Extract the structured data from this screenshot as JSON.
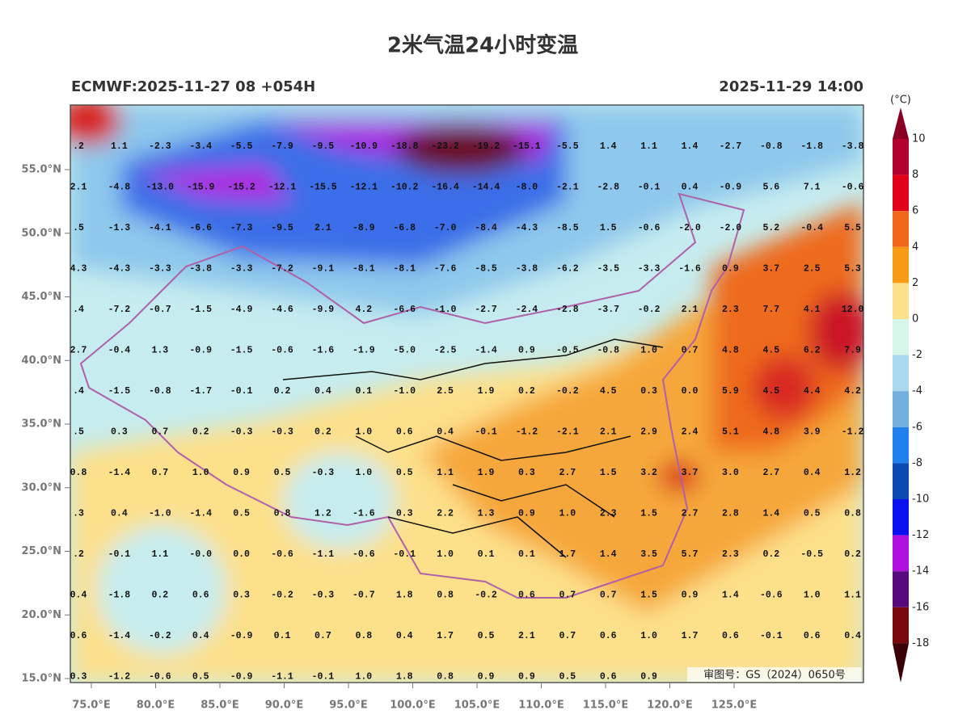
{
  "title": "2米气温24小时变温",
  "model_run": "ECMWF:2025-11-27 08 +054H",
  "valid_time": "2025-11-29 14:00",
  "unit": "(°C)",
  "colorbar": {
    "labels": [
      10,
      8,
      6,
      4,
      2,
      0,
      -2,
      -4,
      -6,
      -8,
      -10,
      -12,
      -14,
      -16,
      -18
    ],
    "colors": [
      "#8a0024",
      "#b3002e",
      "#e3001b",
      "#f0661a",
      "#f79a14",
      "#fde18a",
      "#d6f6ea",
      "#a8d8f0",
      "#74aedc",
      "#1f80ee",
      "#0a4ab2",
      "#0a10f0",
      "#b010e0",
      "#560a7c",
      "#780a0e",
      "#3a0006"
    ]
  },
  "lat_labels": [
    "55.0°N",
    "50.0°N",
    "45.0°N",
    "40.0°N",
    "35.0°N",
    "30.0°N",
    "25.0°N",
    "20.0°N",
    "15.0°N"
  ],
  "lon_labels": [
    "75.0°E",
    "80.0°E",
    "85.0°E",
    "90.0°E",
    "95.0°E",
    "100.0°E",
    "105.0°E",
    "110.0°E",
    "115.0°E",
    "120.0°E",
    "125.0°E"
  ],
  "grid": {
    "rows": [
      [
        ".2",
        "1.1",
        "-2.3",
        "-3.4",
        "-5.5",
        "-7.9",
        "-9.5",
        "-10.9",
        "-18.8",
        "-23.2",
        "-19.2",
        "-15.1",
        "-5.5",
        "1.4",
        "1.1",
        "1.4",
        "-2.7",
        "-0.8",
        "-1.8",
        "-3.8"
      ],
      [
        "2.1",
        "-4.8",
        "-13.0",
        "-15.9",
        "-15.2",
        "-12.1",
        "-15.5",
        "-12.1",
        "-10.2",
        "-16.4",
        "-14.4",
        "-8.0",
        "-2.1",
        "-2.8",
        "-0.1",
        "0.4",
        "-0.9",
        "5.6",
        "7.1",
        "-0.6"
      ],
      [
        ".5",
        "-1.3",
        "-4.1",
        "-6.6",
        "-7.3",
        "-9.5",
        "2.1",
        "-8.9",
        "-6.8",
        "-7.0",
        "-8.4",
        "-4.3",
        "-8.5",
        "1.5",
        "-0.6",
        "-2.0",
        "-2.0",
        "5.2",
        "-0.4",
        "5.5"
      ],
      [
        "4.3",
        "-4.3",
        "-3.3",
        "-3.8",
        "-3.3",
        "-7.2",
        "-9.1",
        "-8.1",
        "-8.1",
        "-7.6",
        "-8.5",
        "-3.8",
        "-6.2",
        "-3.5",
        "-3.3",
        "-1.6",
        "0.9",
        "3.7",
        "2.5",
        "5.3"
      ],
      [
        ".4",
        "-7.2",
        "-0.7",
        "-1.5",
        "-4.9",
        "-4.6",
        "-9.9",
        "4.2",
        "-6.6",
        "-1.0",
        "-2.7",
        "-2.4",
        "-2.8",
        "-3.7",
        "-0.2",
        "2.1",
        "2.3",
        "7.7",
        "4.1",
        "12.0"
      ],
      [
        "2.7",
        "-0.4",
        "1.3",
        "-0.9",
        "-1.5",
        "-0.6",
        "-1.6",
        "-1.9",
        "-5.0",
        "-2.5",
        "-1.4",
        "0.9",
        "-0.5",
        "-0.8",
        "1.0",
        "0.7",
        "4.8",
        "4.5",
        "6.2",
        "7.9"
      ],
      [
        ".4",
        "-1.5",
        "-0.8",
        "-1.7",
        "-0.1",
        "0.2",
        "0.4",
        "0.1",
        "-1.0",
        "2.5",
        "1.9",
        "0.2",
        "-0.2",
        "4.5",
        "0.3",
        "0.0",
        "5.9",
        "4.5",
        "4.4",
        "4.2"
      ],
      [
        ".5",
        "0.3",
        "0.7",
        "0.2",
        "-0.3",
        "-0.3",
        "0.2",
        "1.0",
        "0.6",
        "0.4",
        "-0.1",
        "-1.2",
        "-2.1",
        "2.1",
        "2.9",
        "2.4",
        "5.1",
        "4.8",
        "3.9",
        "-1.2"
      ],
      [
        "0.8",
        "-1.4",
        "0.7",
        "1.0",
        "0.9",
        "0.5",
        "-0.3",
        "1.0",
        "0.5",
        "1.1",
        "1.9",
        "0.3",
        "2.7",
        "1.5",
        "3.2",
        "3.7",
        "3.0",
        "2.7",
        "0.4",
        "1.2"
      ],
      [
        ".3",
        "0.4",
        "-1.0",
        "-1.4",
        "0.5",
        "0.8",
        "1.2",
        "-1.6",
        "0.3",
        "2.2",
        "1.3",
        "0.9",
        "1.0",
        "2.3",
        "1.5",
        "2.7",
        "2.8",
        "1.4",
        "0.5",
        "0.8"
      ],
      [
        ".2",
        "-0.1",
        "1.1",
        "-0.0",
        "0.0",
        "-0.6",
        "-1.1",
        "-0.6",
        "-0.1",
        "1.0",
        "0.1",
        "0.1",
        "1.7",
        "1.4",
        "3.5",
        "5.7",
        "2.3",
        "0.2",
        "-0.5",
        "0.2"
      ],
      [
        "0.4",
        "-1.8",
        "0.2",
        "0.6",
        "0.3",
        "-0.2",
        "-0.3",
        "-0.7",
        "1.8",
        "0.8",
        "-0.2",
        "0.6",
        "0.7",
        "0.7",
        "1.5",
        "0.9",
        "1.4",
        "-0.6",
        "1.0",
        "1.1"
      ],
      [
        "0.6",
        "-1.4",
        "-0.2",
        "0.4",
        "-0.9",
        "0.1",
        "0.7",
        "0.8",
        "0.4",
        "1.7",
        "0.5",
        "2.1",
        "0.7",
        "0.6",
        "1.0",
        "1.7",
        "0.6",
        "-0.1",
        "0.6",
        "0.4"
      ],
      [
        "0.3",
        "-1.2",
        "-0.6",
        "0.5",
        "-0.9",
        "-1.1",
        "-0.1",
        "1.0",
        "1.8",
        "0.8",
        "0.9",
        "0.9",
        "0.5",
        "0.6",
        "0.9"
      ]
    ]
  },
  "watermark": "审图号：GS（2024）0650号"
}
